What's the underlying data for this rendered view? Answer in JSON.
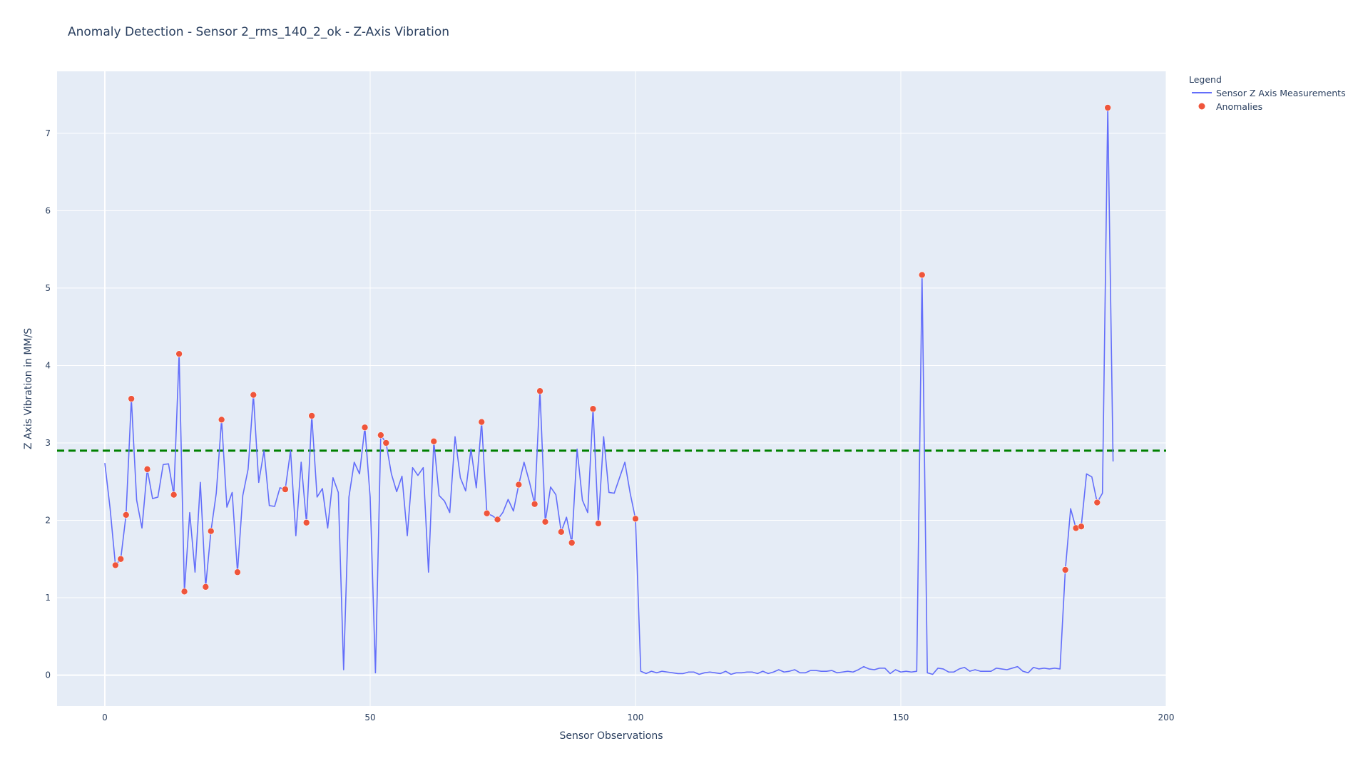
{
  "chart_data": {
    "type": "line",
    "title": "Anomaly Detection - Sensor 2_rms_140_2_ok - Z-Axis Vibration",
    "xlabel": "Sensor Observations",
    "ylabel": "Z Axis Vibration in MM/S",
    "xlim": [
      -9,
      200
    ],
    "ylim": [
      -0.4,
      7.8
    ],
    "xticks": [
      0,
      50,
      100,
      150,
      200
    ],
    "yticks": [
      0,
      1,
      2,
      3,
      4,
      5,
      6,
      7
    ],
    "grid": true,
    "legend": {
      "title": "Legend",
      "placement": "top-right outside",
      "entries": [
        "Sensor Z Axis Measurements",
        "Anomalies"
      ]
    },
    "threshold": {
      "value": 2.9,
      "color": "#008000",
      "style": "dashed"
    },
    "colors": {
      "line": "#636efa",
      "anomaly": "#ef553b",
      "plot_bg": "#e5ecf6",
      "grid": "#ffffff"
    },
    "series": [
      {
        "name": "Sensor Z Axis Measurements",
        "kind": "line",
        "x": [
          0,
          1,
          2,
          3,
          4,
          5,
          6,
          7,
          8,
          9,
          10,
          11,
          12,
          13,
          14,
          15,
          16,
          17,
          18,
          19,
          20,
          21,
          22,
          23,
          24,
          25,
          26,
          27,
          28,
          29,
          30,
          31,
          32,
          33,
          34,
          35,
          36,
          37,
          38,
          39,
          40,
          41,
          42,
          43,
          44,
          45,
          46,
          47,
          48,
          49,
          50,
          51,
          52,
          53,
          54,
          55,
          56,
          57,
          58,
          59,
          60,
          61,
          62,
          63,
          64,
          65,
          66,
          67,
          68,
          69,
          70,
          71,
          72,
          73,
          74,
          75,
          76,
          77,
          78,
          79,
          80,
          81,
          82,
          83,
          84,
          85,
          86,
          87,
          88,
          89,
          90,
          91,
          92,
          93,
          94,
          95,
          96,
          97,
          98,
          99,
          100,
          101,
          102,
          103,
          104,
          105,
          106,
          107,
          108,
          109,
          110,
          111,
          112,
          113,
          114,
          115,
          116,
          117,
          118,
          119,
          120,
          121,
          122,
          123,
          124,
          125,
          126,
          127,
          128,
          129,
          130,
          131,
          132,
          133,
          134,
          135,
          136,
          137,
          138,
          139,
          140,
          141,
          142,
          143,
          144,
          145,
          146,
          147,
          148,
          149,
          150,
          151,
          152,
          153,
          154,
          155,
          156,
          157,
          158,
          159,
          160,
          161,
          162,
          163,
          164,
          165,
          166,
          167,
          168,
          169,
          170,
          171,
          172,
          173,
          174,
          175,
          176,
          177,
          178,
          179,
          180,
          181,
          182,
          183,
          184,
          185,
          186,
          187,
          188,
          189,
          190
        ],
        "y": [
          2.74,
          2.15,
          1.42,
          1.5,
          2.07,
          3.57,
          2.26,
          1.9,
          2.66,
          2.28,
          2.3,
          2.72,
          2.73,
          2.33,
          4.15,
          1.08,
          2.1,
          1.33,
          2.49,
          1.14,
          1.86,
          2.35,
          3.3,
          2.17,
          2.36,
          1.33,
          2.32,
          2.66,
          3.62,
          2.49,
          2.9,
          2.19,
          2.18,
          2.42,
          2.4,
          2.9,
          1.8,
          2.75,
          1.97,
          3.35,
          2.3,
          2.41,
          1.9,
          2.55,
          2.36,
          0.07,
          2.3,
          2.75,
          2.6,
          3.2,
          2.3,
          0.03,
          3.1,
          3.0,
          2.6,
          2.37,
          2.57,
          1.8,
          2.68,
          2.58,
          2.68,
          1.33,
          3.02,
          2.32,
          2.25,
          2.1,
          3.08,
          2.55,
          2.38,
          2.92,
          2.42,
          3.27,
          2.09,
          2.06,
          2.01,
          2.1,
          2.27,
          2.12,
          2.46,
          2.75,
          2.5,
          2.21,
          3.67,
          1.98,
          2.43,
          2.33,
          1.85,
          2.04,
          1.71,
          2.92,
          2.26,
          2.1,
          3.44,
          1.96,
          3.08,
          2.36,
          2.35,
          2.55,
          2.75,
          2.35,
          2.02,
          0.05,
          0.02,
          0.05,
          0.03,
          0.05,
          0.04,
          0.03,
          0.02,
          0.02,
          0.04,
          0.04,
          0.01,
          0.03,
          0.04,
          0.03,
          0.02,
          0.05,
          0.01,
          0.03,
          0.03,
          0.04,
          0.04,
          0.02,
          0.05,
          0.02,
          0.04,
          0.07,
          0.04,
          0.05,
          0.07,
          0.03,
          0.03,
          0.06,
          0.06,
          0.05,
          0.05,
          0.06,
          0.03,
          0.04,
          0.05,
          0.04,
          0.07,
          0.11,
          0.08,
          0.07,
          0.09,
          0.09,
          0.02,
          0.07,
          0.04,
          0.05,
          0.04,
          0.05,
          5.17,
          0.03,
          0.01,
          0.09,
          0.08,
          0.04,
          0.04,
          0.08,
          0.1,
          0.05,
          0.07,
          0.05,
          0.05,
          0.05,
          0.09,
          0.08,
          0.07,
          0.09,
          0.11,
          0.05,
          0.03,
          0.1,
          0.08,
          0.09,
          0.08,
          0.09,
          0.08,
          1.36,
          2.15,
          1.9,
          1.92,
          2.6,
          2.56,
          2.23,
          2.35,
          7.33,
          2.76
        ]
      },
      {
        "name": "Anomalies",
        "kind": "markers",
        "x": [
          2,
          3,
          4,
          5,
          8,
          13,
          14,
          15,
          19,
          20,
          22,
          25,
          28,
          34,
          38,
          39,
          49,
          52,
          53,
          62,
          71,
          72,
          74,
          78,
          81,
          82,
          83,
          86,
          88,
          92,
          93,
          100,
          154,
          181,
          183,
          184,
          187,
          189
        ],
        "y": [
          1.42,
          1.5,
          2.07,
          3.57,
          2.66,
          2.33,
          4.15,
          1.08,
          1.14,
          1.86,
          3.3,
          1.33,
          3.62,
          2.4,
          1.97,
          3.35,
          3.2,
          3.1,
          3.0,
          3.02,
          3.27,
          2.09,
          2.01,
          2.46,
          2.21,
          3.67,
          1.98,
          1.85,
          1.71,
          3.44,
          1.96,
          2.02,
          5.17,
          1.36,
          1.9,
          1.92,
          2.23,
          7.33
        ]
      }
    ]
  }
}
